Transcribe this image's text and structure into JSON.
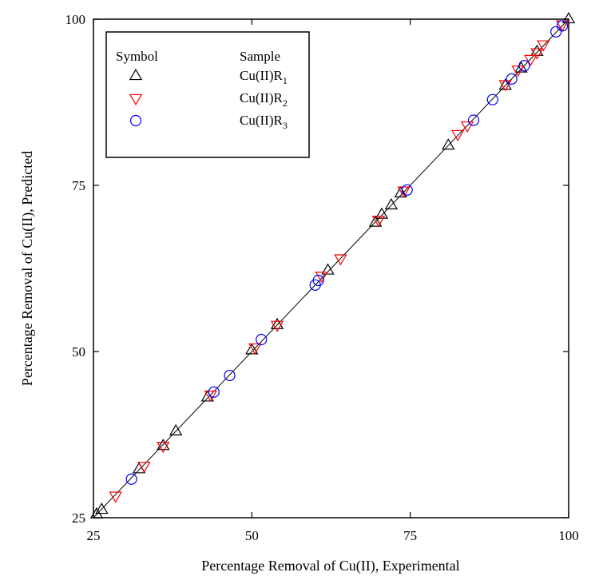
{
  "chart_data": {
    "type": "scatter",
    "title": "",
    "xlabel": "Percentage Removal of Cu(II), Experimental",
    "ylabel": "Percentage Removal of Cu(II), Predicted",
    "xlim": [
      25,
      100
    ],
    "ylim": [
      25,
      100
    ],
    "xticks": [
      "25",
      "50",
      "75",
      "100"
    ],
    "yticks": [
      "25",
      "50",
      "75",
      "100"
    ],
    "grid": false,
    "legend": {
      "placement": "top-left",
      "header_symbol": "Symbol",
      "header_sample": "Sample"
    },
    "fit_line": {
      "x": [
        25,
        100
      ],
      "y": [
        25,
        100
      ]
    },
    "series": [
      {
        "name": "Cu(II)R",
        "sub": "1",
        "marker": "triangle-up",
        "color": "#000000",
        "x": [
          25.5,
          26.3,
          32.2,
          36,
          38,
          43,
          50,
          54,
          62,
          69.5,
          70.5,
          72,
          73.5,
          81,
          90,
          92.5,
          95,
          100
        ],
        "y": [
          25.5,
          26.2,
          32.3,
          35.8,
          38,
          43.1,
          50.2,
          54,
          62.2,
          69.4,
          70.6,
          72,
          73.8,
          81,
          90,
          92.6,
          95.1,
          100
        ]
      },
      {
        "name": "Cu(II)R",
        "sub": "2",
        "marker": "triangle-down",
        "color": "#ff0000",
        "x": [
          28.5,
          33,
          36,
          43.5,
          50.5,
          54,
          61,
          64,
          70,
          74,
          82.5,
          84,
          90,
          92,
          94,
          95,
          96,
          99
        ],
        "y": [
          28.3,
          32.8,
          35.8,
          43.5,
          50.6,
          54,
          61.4,
          64,
          69.8,
          74.2,
          82.7,
          84,
          90.2,
          92.4,
          94,
          95,
          96.2,
          99.2
        ]
      },
      {
        "name": "Cu(II)R",
        "sub": "3",
        "marker": "circle",
        "color": "#0000ff",
        "x": [
          31,
          44,
          46.5,
          51.5,
          60,
          60.5,
          74.5,
          85,
          88,
          91,
          93,
          98,
          99
        ],
        "y": [
          30.8,
          43.9,
          46.4,
          51.8,
          60,
          60.7,
          74.3,
          84.8,
          87.9,
          91,
          93,
          98.1,
          99
        ]
      }
    ]
  }
}
